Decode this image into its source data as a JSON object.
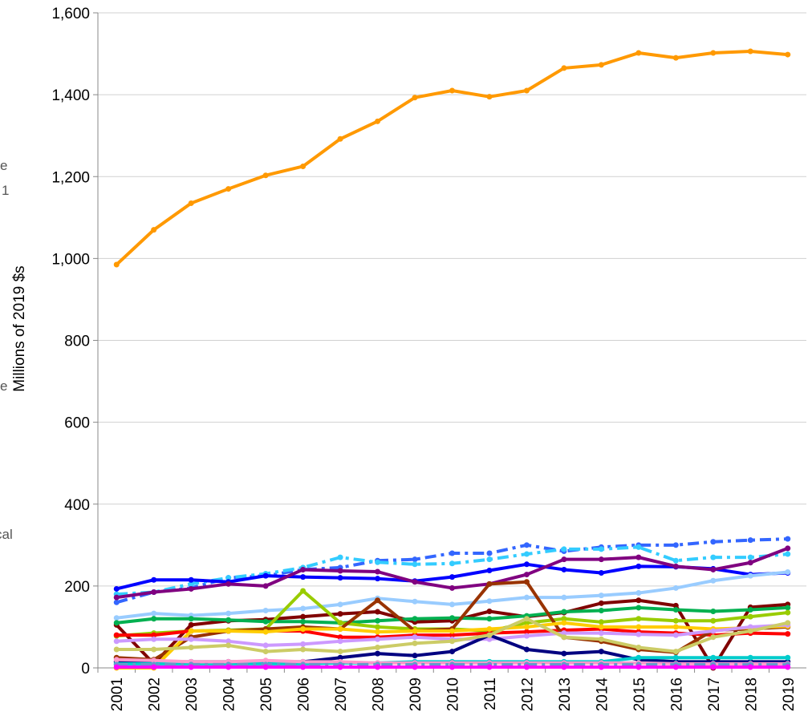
{
  "chart_data": {
    "type": "line",
    "y_label": "Millions of 2019 $s",
    "annotations": [
      "e",
      "1",
      "e",
      "cal"
    ],
    "categories": [
      "2001",
      "2002",
      "2003",
      "2004",
      "2005",
      "2006",
      "2007",
      "2008",
      "2009",
      "2010",
      "2011",
      "2012",
      "2013",
      "2014",
      "2015",
      "2016",
      "2017",
      "2018",
      "2019"
    ],
    "ylim": [
      0,
      1600
    ],
    "yticks": [
      0,
      200,
      400,
      600,
      800,
      {
        "value": 1000,
        "label": "1,000"
      },
      {
        "value": 1200,
        "label": "1,200"
      },
      {
        "value": 1400,
        "label": "1,400"
      },
      {
        "value": 1600,
        "label": "1,600"
      }
    ],
    "grid": true,
    "series": [
      {
        "color": "#ff9900",
        "dash": false,
        "values": [
          985,
          1070,
          1135,
          1170,
          1203,
          1225,
          1292,
          1335,
          1393,
          1410,
          1395,
          1410,
          1465,
          1473,
          1502,
          1490,
          1502,
          1506,
          1498
        ]
      },
      {
        "color": "#3366ff",
        "dash": true,
        "values": [
          160,
          185,
          195,
          220,
          225,
          240,
          245,
          262,
          265,
          280,
          280,
          300,
          285,
          295,
          300,
          300,
          308,
          312,
          315
        ]
      },
      {
        "color": "#33ccff",
        "dash": true,
        "values": [
          180,
          185,
          205,
          220,
          230,
          245,
          270,
          258,
          253,
          255,
          265,
          278,
          290,
          290,
          295,
          262,
          270,
          270,
          278
        ]
      },
      {
        "color": "#0000ff",
        "dash": false,
        "values": [
          193,
          215,
          215,
          210,
          225,
          222,
          220,
          218,
          212,
          222,
          238,
          253,
          240,
          232,
          248,
          247,
          242,
          228,
          232
        ]
      },
      {
        "color": "#800080",
        "dash": false,
        "values": [
          172,
          185,
          193,
          205,
          200,
          240,
          237,
          235,
          210,
          195,
          205,
          228,
          265,
          265,
          270,
          248,
          240,
          257,
          292
        ]
      },
      {
        "color": "#99ccff",
        "dash": false,
        "values": [
          122,
          133,
          128,
          133,
          140,
          145,
          155,
          170,
          162,
          155,
          163,
          172,
          172,
          177,
          183,
          195,
          213,
          225,
          234
        ]
      },
      {
        "color": "#800000",
        "dash": false,
        "values": [
          105,
          10,
          105,
          115,
          118,
          125,
          132,
          137,
          112,
          115,
          138,
          125,
          135,
          158,
          165,
          152,
          0,
          148,
          155
        ]
      },
      {
        "color": "#00b050",
        "dash": false,
        "values": [
          110,
          120,
          120,
          117,
          113,
          113,
          110,
          115,
          120,
          122,
          120,
          127,
          137,
          140,
          147,
          142,
          138,
          142,
          147
        ]
      },
      {
        "color": "#99cc00",
        "dash": false,
        "values": [
          78,
          85,
          90,
          92,
          95,
          188,
          110,
          100,
          95,
          95,
          90,
          110,
          120,
          112,
          120,
          115,
          115,
          125,
          135
        ]
      },
      {
        "color": "#ff0000",
        "dash": false,
        "values": [
          80,
          80,
          90,
          90,
          90,
          90,
          75,
          75,
          80,
          80,
          85,
          88,
          92,
          95,
          88,
          85,
          80,
          85,
          83
        ]
      },
      {
        "color": "#993300",
        "dash": false,
        "values": [
          25,
          20,
          75,
          90,
          95,
          100,
          95,
          165,
          90,
          95,
          205,
          210,
          75,
          65,
          45,
          38,
          92,
          95,
          100
        ]
      },
      {
        "color": "#ffcc00",
        "dash": false,
        "values": [
          0,
          0,
          90,
          90,
          88,
          95,
          95,
          88,
          90,
          90,
          95,
          100,
          110,
          100,
          100,
          100,
          95,
          98,
          102
        ]
      },
      {
        "color": "#cc99ff",
        "dash": false,
        "values": [
          65,
          70,
          70,
          65,
          55,
          58,
          65,
          70,
          75,
          70,
          70,
          78,
          85,
          85,
          82,
          80,
          90,
          100,
          105
        ]
      },
      {
        "color": "#000080",
        "dash": false,
        "values": [
          15,
          15,
          15,
          15,
          15,
          15,
          25,
          35,
          30,
          40,
          80,
          45,
          35,
          40,
          20,
          15,
          15,
          15,
          15
        ]
      },
      {
        "color": "#cccc66",
        "dash": false,
        "values": [
          45,
          45,
          50,
          55,
          40,
          45,
          40,
          50,
          60,
          65,
          80,
          120,
          75,
          70,
          50,
          40,
          75,
          90,
          110
        ]
      },
      {
        "color": "#00cccc",
        "dash": false,
        "values": [
          10,
          10,
          10,
          10,
          10,
          10,
          12,
          12,
          15,
          15,
          15,
          15,
          15,
          15,
          25,
          25,
          25,
          25,
          25
        ]
      },
      {
        "color": "#ff99cc",
        "dash": false,
        "values": [
          20,
          18,
          15,
          15,
          18,
          15,
          15,
          12,
          12,
          12,
          12,
          12,
          12,
          12,
          12,
          10,
          10,
          10,
          10
        ]
      },
      {
        "color": "#6699cc",
        "dash": true,
        "values": [
          8,
          8,
          8,
          8,
          8,
          8,
          8,
          8,
          8,
          8,
          8,
          8,
          8,
          8,
          8,
          8,
          8,
          8,
          8
        ]
      },
      {
        "color": "#ff00ff",
        "dash": false,
        "values": [
          2,
          2,
          2,
          2,
          2,
          2,
          2,
          2,
          2,
          2,
          2,
          2,
          2,
          2,
          2,
          2,
          2,
          2,
          2
        ]
      }
    ]
  }
}
